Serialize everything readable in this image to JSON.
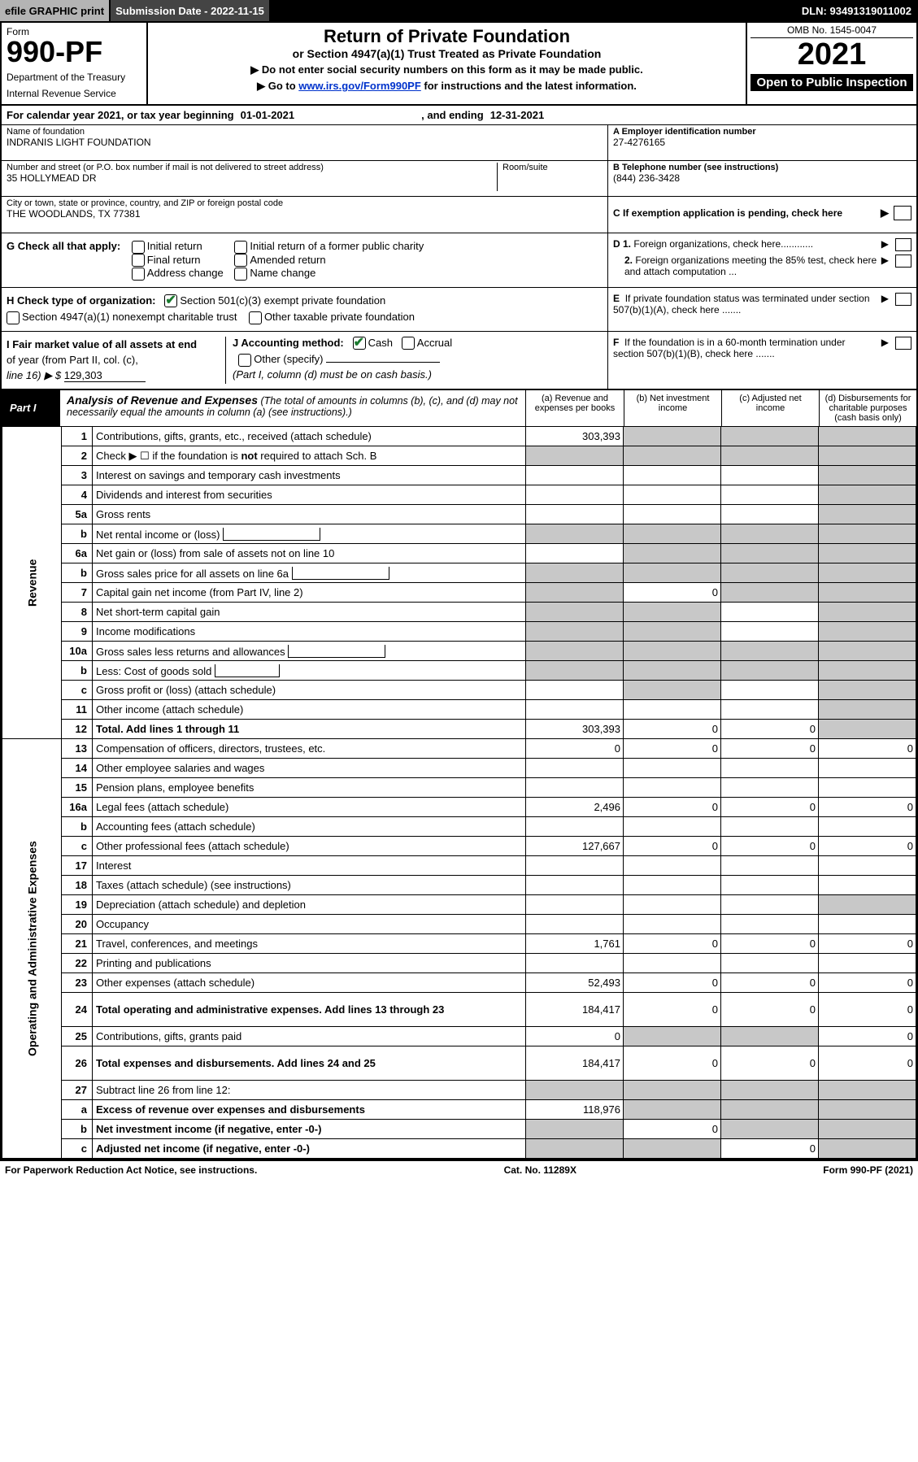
{
  "colors": {
    "black": "#000000",
    "white": "#ffffff",
    "topbar_grey": "#b4b4b4",
    "topbar_dark": "#444444",
    "cell_grey": "#c8c8c8",
    "link_blue": "#0033cc",
    "check_green": "#1a7a2e"
  },
  "topbar": {
    "efile": "efile GRAPHIC print",
    "submission_label": "Submission Date - 2022-11-15",
    "dln": "DLN: 93491319011002"
  },
  "header": {
    "form_word": "Form",
    "form_number": "990-PF",
    "dept1": "Department of the Treasury",
    "dept2": "Internal Revenue Service",
    "title": "Return of Private Foundation",
    "subtitle": "or Section 4947(a)(1) Trust Treated as Private Foundation",
    "note1": "▶ Do not enter social security numbers on this form as it may be made public.",
    "note2_pre": "▶ Go to ",
    "note2_link": "www.irs.gov/Form990PF",
    "note2_post": " for instructions and the latest information.",
    "omb": "OMB No. 1545-0047",
    "year": "2021",
    "open_public": "Open to Public Inspection"
  },
  "calendar": {
    "prefix": "For calendar year 2021, or tax year beginning ",
    "begin": "01-01-2021",
    "mid": ", and ending ",
    "end": "12-31-2021"
  },
  "ident": {
    "name_label": "Name of foundation",
    "name_val": "INDRANIS LIGHT FOUNDATION",
    "addr_label": "Number and street (or P.O. box number if mail is not delivered to street address)",
    "addr_val": "35 HOLLYMEAD DR",
    "room_label": "Room/suite",
    "city_label": "City or town, state or province, country, and ZIP or foreign postal code",
    "city_val": "THE WOODLANDS, TX  77381",
    "a_label": "A Employer identification number",
    "a_val": "27-4276165",
    "b_label": "B Telephone number (see instructions)",
    "b_val": "(844) 236-3428",
    "c_label": "C If exemption application is pending, check here"
  },
  "g": {
    "label": "G Check all that apply:",
    "o1": "Initial return",
    "o2": "Final return",
    "o3": "Address change",
    "o4": "Initial return of a former public charity",
    "o5": "Amended return",
    "o6": "Name change"
  },
  "h": {
    "label": "H Check type of organization:",
    "o1": "Section 501(c)(3) exempt private foundation",
    "o2": "Section 4947(a)(1) nonexempt charitable trust",
    "o3": "Other taxable private foundation"
  },
  "i": {
    "label1": "I Fair market value of all assets at end",
    "label2": "of year (from Part II, col. (c),",
    "label3": "line 16) ▶ $",
    "val": "129,303"
  },
  "j": {
    "label": "J Accounting method:",
    "cash": "Cash",
    "accrual": "Accrual",
    "other": "Other (specify)",
    "note": "(Part I, column (d) must be on cash basis.)"
  },
  "right_checks": {
    "d1": "D 1. Foreign organizations, check here............",
    "d2a": "2. Foreign organizations meeting the 85%",
    "d2b": "test, check here and attach computation ...",
    "e1": "E  If private foundation status was terminated",
    "e2": "under section 507(b)(1)(A), check here .......",
    "f1": "F  If the foundation is in a 60-month termination",
    "f2": "under section 507(b)(1)(B), check here .......",
    "arrow": "▶"
  },
  "part1": {
    "label": "Part I",
    "title": "Analysis of Revenue and Expenses",
    "title_note": "(The total of amounts in columns (b), (c), and (d) may not necessarily equal the amounts in column (a) (see instructions).)",
    "col_a": "(a)  Revenue and expenses per books",
    "col_b": "(b)  Net investment income",
    "col_c": "(c)  Adjusted net income",
    "col_d": "(d)  Disbursements for charitable purposes (cash basis only)"
  },
  "side_labels": {
    "revenue": "Revenue",
    "opex": "Operating and Administrative Expenses"
  },
  "rows": [
    {
      "n": "1",
      "lbl": "Contributions, gifts, grants, etc., received (attach schedule)",
      "a": "303,393",
      "b": "g",
      "c": "g",
      "d": "g"
    },
    {
      "n": "2",
      "lbl": "Check ▶ ☐ if the foundation is not required to attach Sch. B",
      "a": "g",
      "b": "g",
      "c": "g",
      "d": "g",
      "bold_not": true
    },
    {
      "n": "3",
      "lbl": "Interest on savings and temporary cash investments",
      "a": "",
      "b": "",
      "c": "",
      "d": "g"
    },
    {
      "n": "4",
      "lbl": "Dividends and interest from securities",
      "a": "",
      "b": "",
      "c": "",
      "d": "g"
    },
    {
      "n": "5a",
      "lbl": "Gross rents",
      "a": "",
      "b": "",
      "c": "",
      "d": "g"
    },
    {
      "n": "b",
      "lbl": "Net rental income or (loss)",
      "a": "g",
      "b": "g",
      "c": "g",
      "d": "g",
      "inline_box": true
    },
    {
      "n": "6a",
      "lbl": "Net gain or (loss) from sale of assets not on line 10",
      "a": "",
      "b": "g",
      "c": "g",
      "d": "g"
    },
    {
      "n": "b",
      "lbl": "Gross sales price for all assets on line 6a",
      "a": "g",
      "b": "g",
      "c": "g",
      "d": "g",
      "inline_box": true
    },
    {
      "n": "7",
      "lbl": "Capital gain net income (from Part IV, line 2)",
      "a": "g",
      "b": "0",
      "c": "g",
      "d": "g"
    },
    {
      "n": "8",
      "lbl": "Net short-term capital gain",
      "a": "g",
      "b": "g",
      "c": "",
      "d": "g"
    },
    {
      "n": "9",
      "lbl": "Income modifications",
      "a": "g",
      "b": "g",
      "c": "",
      "d": "g"
    },
    {
      "n": "10a",
      "lbl": "Gross sales less returns and allowances",
      "a": "g",
      "b": "g",
      "c": "g",
      "d": "g",
      "inline_box": true
    },
    {
      "n": "b",
      "lbl": "Less: Cost of goods sold",
      "a": "g",
      "b": "g",
      "c": "g",
      "d": "g",
      "inline_box": true,
      "short": true
    },
    {
      "n": "c",
      "lbl": "Gross profit or (loss) (attach schedule)",
      "a": "",
      "b": "g",
      "c": "",
      "d": "g"
    },
    {
      "n": "11",
      "lbl": "Other income (attach schedule)",
      "a": "",
      "b": "",
      "c": "",
      "d": "g"
    },
    {
      "n": "12",
      "lbl": "Total. Add lines 1 through 11",
      "a": "303,393",
      "b": "0",
      "c": "0",
      "d": "g",
      "bold": true
    },
    {
      "n": "13",
      "lbl": "Compensation of officers, directors, trustees, etc.",
      "a": "0",
      "b": "0",
      "c": "0",
      "d": "0"
    },
    {
      "n": "14",
      "lbl": "Other employee salaries and wages",
      "a": "",
      "b": "",
      "c": "",
      "d": ""
    },
    {
      "n": "15",
      "lbl": "Pension plans, employee benefits",
      "a": "",
      "b": "",
      "c": "",
      "d": ""
    },
    {
      "n": "16a",
      "lbl": "Legal fees (attach schedule)",
      "a": "2,496",
      "b": "0",
      "c": "0",
      "d": "0"
    },
    {
      "n": "b",
      "lbl": "Accounting fees (attach schedule)",
      "a": "",
      "b": "",
      "c": "",
      "d": ""
    },
    {
      "n": "c",
      "lbl": "Other professional fees (attach schedule)",
      "a": "127,667",
      "b": "0",
      "c": "0",
      "d": "0"
    },
    {
      "n": "17",
      "lbl": "Interest",
      "a": "",
      "b": "",
      "c": "",
      "d": ""
    },
    {
      "n": "18",
      "lbl": "Taxes (attach schedule) (see instructions)",
      "a": "",
      "b": "",
      "c": "",
      "d": ""
    },
    {
      "n": "19",
      "lbl": "Depreciation (attach schedule) and depletion",
      "a": "",
      "b": "",
      "c": "",
      "d": "g"
    },
    {
      "n": "20",
      "lbl": "Occupancy",
      "a": "",
      "b": "",
      "c": "",
      "d": ""
    },
    {
      "n": "21",
      "lbl": "Travel, conferences, and meetings",
      "a": "1,761",
      "b": "0",
      "c": "0",
      "d": "0"
    },
    {
      "n": "22",
      "lbl": "Printing and publications",
      "a": "",
      "b": "",
      "c": "",
      "d": ""
    },
    {
      "n": "23",
      "lbl": "Other expenses (attach schedule)",
      "a": "52,493",
      "b": "0",
      "c": "0",
      "d": "0"
    },
    {
      "n": "24",
      "lbl": "Total operating and administrative expenses. Add lines 13 through 23",
      "a": "184,417",
      "b": "0",
      "c": "0",
      "d": "0",
      "bold": true,
      "tall": true
    },
    {
      "n": "25",
      "lbl": "Contributions, gifts, grants paid",
      "a": "0",
      "b": "g",
      "c": "g",
      "d": "0"
    },
    {
      "n": "26",
      "lbl": "Total expenses and disbursements. Add lines 24 and 25",
      "a": "184,417",
      "b": "0",
      "c": "0",
      "d": "0",
      "bold": true,
      "tall": true
    },
    {
      "n": "27",
      "lbl": "Subtract line 26 from line 12:",
      "a": "g",
      "b": "g",
      "c": "g",
      "d": "g"
    },
    {
      "n": "a",
      "lbl": "Excess of revenue over expenses and disbursements",
      "a": "118,976",
      "b": "g",
      "c": "g",
      "d": "g",
      "bold": true
    },
    {
      "n": "b",
      "lbl": "Net investment income (if negative, enter -0-)",
      "a": "g",
      "b": "0",
      "c": "g",
      "d": "g",
      "bold": true
    },
    {
      "n": "c",
      "lbl": "Adjusted net income (if negative, enter -0-)",
      "a": "g",
      "b": "g",
      "c": "0",
      "d": "g",
      "bold": true
    }
  ],
  "footer": {
    "left": "For Paperwork Reduction Act Notice, see instructions.",
    "mid": "Cat. No. 11289X",
    "right": "Form 990-PF (2021)"
  }
}
